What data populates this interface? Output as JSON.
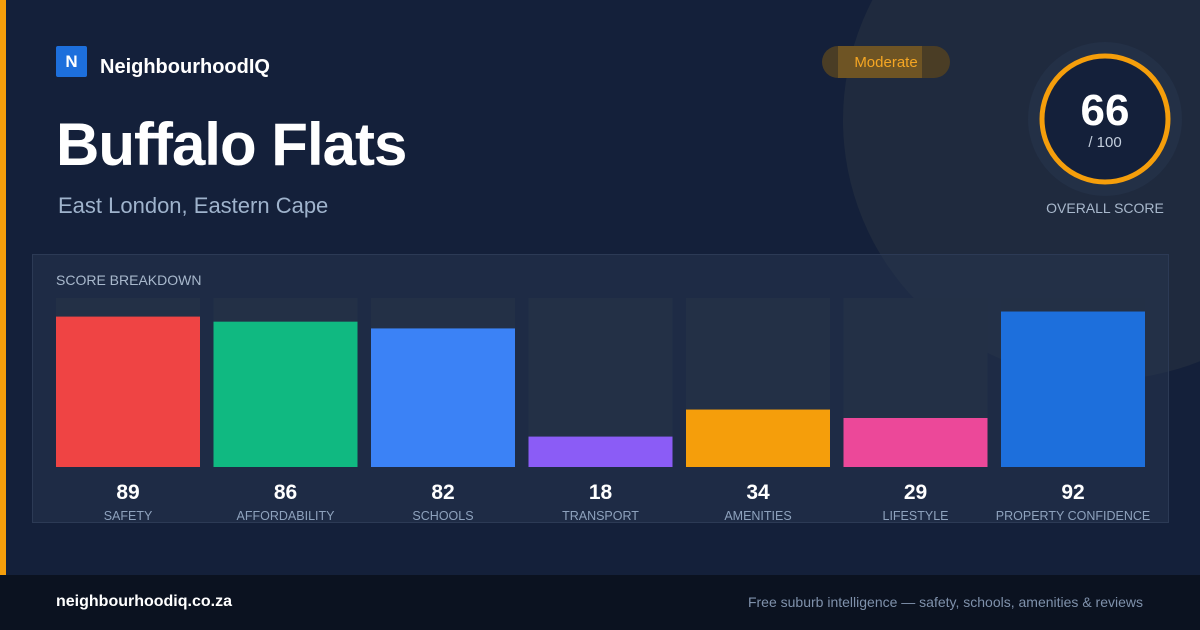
{
  "brand": {
    "logo_letter": "N",
    "name": "NeighbourhoodIQ"
  },
  "title": "Buffalo Flats",
  "subtitle": "East London, Eastern Cape",
  "badge": "Moderate",
  "overall": {
    "score": "66",
    "max_label": "/ 100",
    "label": "OVERALL SCORE",
    "value": 66,
    "max": 100
  },
  "breakdown_title": "SCORE BREAKDOWN",
  "colors": {
    "accent": "#f59e0b",
    "ring": "#f59e0b",
    "track": "#233046"
  },
  "chart_data": {
    "type": "bar",
    "title": "SCORE BREAKDOWN",
    "categories": [
      "SAFETY",
      "AFFORDABILITY",
      "SCHOOLS",
      "TRANSPORT",
      "AMENITIES",
      "LIFESTYLE",
      "PROPERTY CONFIDENCE"
    ],
    "values": [
      89,
      86,
      82,
      18,
      34,
      29,
      92
    ],
    "colors": [
      "#ef4444",
      "#10b981",
      "#3b82f6",
      "#8b5cf6",
      "#f59e0b",
      "#ec4899",
      "#1d6fdc"
    ],
    "ylim": [
      0,
      100
    ],
    "grid": false,
    "legend": "none"
  },
  "footer": {
    "url": "neighbourhoodiq.co.za",
    "tagline": "Free suburb intelligence — safety, schools, amenities & reviews"
  }
}
